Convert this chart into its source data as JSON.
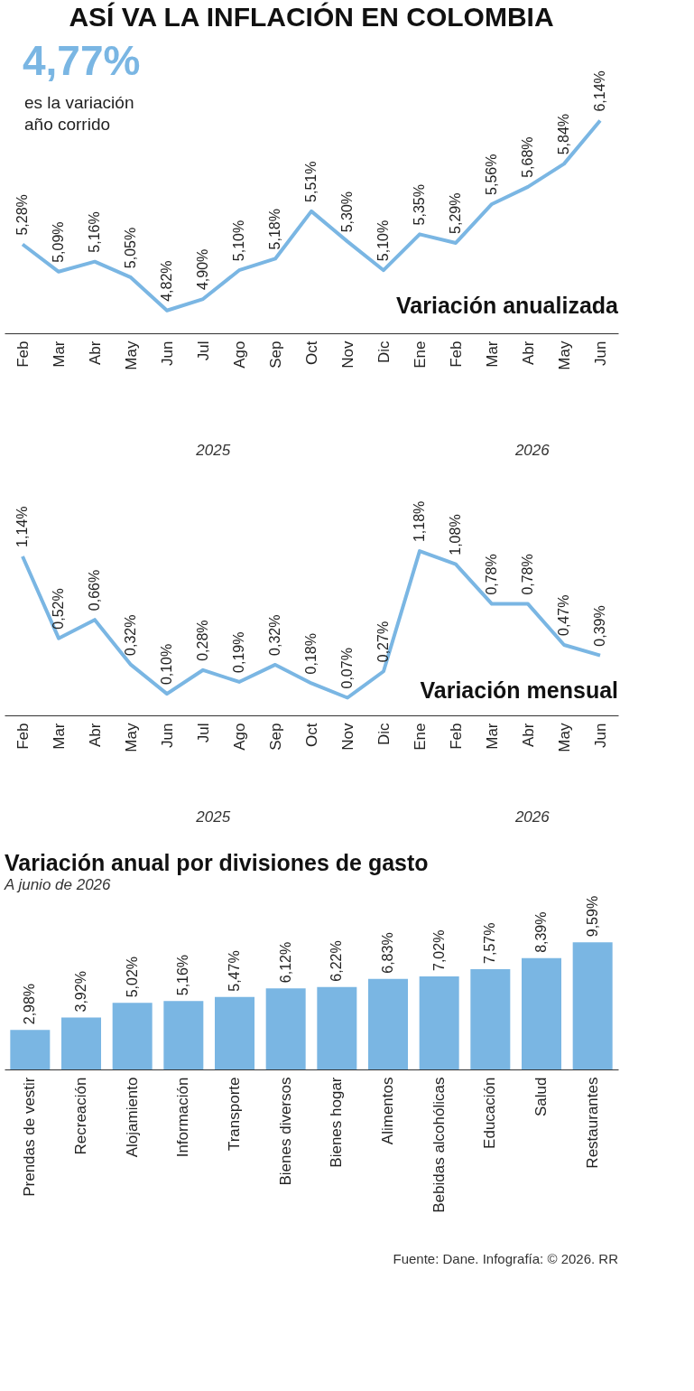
{
  "chart_data": [
    {
      "type": "line",
      "title": "ASÍ VA LA INFLACIÓN EN COLOMBIA",
      "categories": [
        "Feb",
        "Mar",
        "Abr",
        "May",
        "Jun",
        "Jul",
        "Ago",
        "Sep",
        "Oct",
        "Nov",
        "Dic",
        "Ene",
        "Feb",
        "Mar",
        "Abr",
        "May",
        "Jun"
      ],
      "series": [
        {
          "color": "#7ab6e3",
          "values": [
            5.28,
            5.09,
            5.16,
            5.05,
            4.82,
            4.9,
            5.1,
            5.18,
            5.51,
            5.3,
            5.1,
            5.35,
            5.29,
            5.56,
            5.68,
            5.84,
            6.14
          ],
          "value_labels": [
            "5,28%",
            "5,09%",
            "5,16%",
            "5,05%",
            "4,82%",
            "4,90%",
            "5,10%",
            "5,18%",
            "5,51%",
            "5,30%",
            "5,10%",
            "5,35%",
            "5,29%",
            "5,56%",
            "5,68%",
            "5,84%",
            "6,14%"
          ]
        }
      ],
      "annotations": [
        "4,77%",
        "es la variación",
        "año corrido",
        "Variación anualizada",
        "2025",
        "2026"
      ]
    },
    {
      "type": "line",
      "categories": [
        "Feb",
        "Mar",
        "Abr",
        "May",
        "Jun",
        "Jul",
        "Ago",
        "Sep",
        "Oct",
        "Nov",
        "Dic",
        "Ene",
        "Feb",
        "Mar",
        "Abr",
        "May",
        "Jun"
      ],
      "series": [
        {
          "color": "#7ab6e3",
          "values": [
            1.14,
            0.52,
            0.66,
            0.32,
            0.1,
            0.28,
            0.19,
            0.32,
            0.18,
            0.07,
            0.27,
            1.18,
            1.08,
            0.78,
            0.78,
            0.47,
            0.39
          ],
          "value_labels": [
            "1,14%",
            "0,52%",
            "0,66%",
            "0,32%",
            "0,10%",
            "0,28%",
            "0,19%",
            "0,32%",
            "0,18%",
            "0,07%",
            "0,27%",
            "1,18%",
            "1,08%",
            "0,78%",
            "0,78%",
            "0,47%",
            "0,39%"
          ]
        }
      ],
      "annotations": [
        "Variación mensual",
        "2025",
        "2026"
      ]
    },
    {
      "type": "bar",
      "title": "Variación anual por divisiones de gasto",
      "subtitle": "A junio de 2026",
      "categories": [
        "Prendas de vestir",
        "Recreación",
        "Alojamiento",
        "Información",
        "Transporte",
        "Bienes diversos",
        "Bienes hogar",
        "Alimentos",
        "Bebidas alcohólicas",
        "Educación",
        "Salud",
        "Restaurantes"
      ],
      "series": [
        {
          "color": "#7ab6e3",
          "values": [
            2.98,
            3.92,
            5.02,
            5.16,
            5.47,
            6.12,
            6.22,
            6.83,
            7.02,
            7.57,
            8.39,
            9.59
          ],
          "value_labels": [
            "2,98%",
            "3,92%",
            "5,02%",
            "5,16%",
            "5,47%",
            "6,12%",
            "6,22%",
            "6,83%",
            "7,02%",
            "7,57%",
            "8,39%",
            "9,59%"
          ]
        }
      ],
      "annotations": [
        "Fuente: Dane. Infografía: © 2026. RR"
      ]
    }
  ]
}
